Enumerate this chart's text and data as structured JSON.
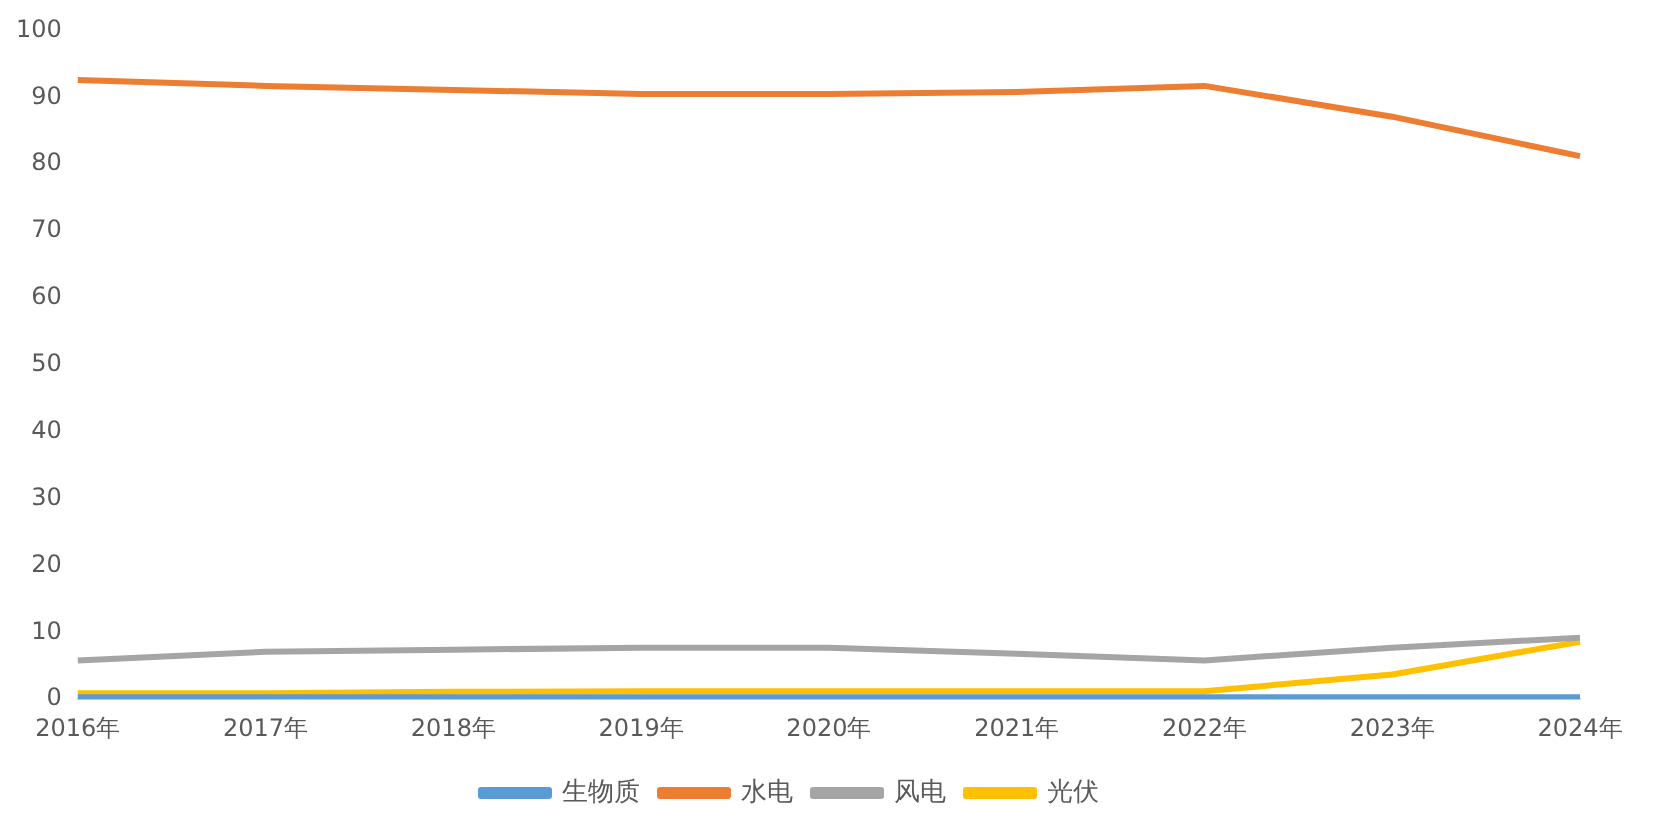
{
  "chart_data": {
    "type": "line",
    "categories": [
      "2016年",
      "2017年",
      "2018年",
      "2019年",
      "2020年",
      "2021年",
      "2022年",
      "2023年",
      "2024年"
    ],
    "series": [
      {
        "name": "生物质",
        "color": "#5b9bd5",
        "values": [
          0.3,
          0.3,
          0.3,
          0.3,
          0.3,
          0.3,
          0.3,
          0.3,
          0.3
        ]
      },
      {
        "name": "水电",
        "color": "#ed7d31",
        "values": [
          92.6,
          91.7,
          91.1,
          90.5,
          90.5,
          90.8,
          91.7,
          87.1,
          81.2
        ]
      },
      {
        "name": "风电",
        "color": "#a5a5a5",
        "values": [
          5.8,
          7.1,
          7.4,
          7.7,
          7.7,
          6.8,
          5.8,
          7.7,
          9.2
        ]
      },
      {
        "name": "光伏",
        "color": "#ffc000",
        "values": [
          0.9,
          0.9,
          1.1,
          1.2,
          1.2,
          1.2,
          1.2,
          3.7,
          8.6
        ]
      }
    ],
    "ylim": [
      0,
      100
    ],
    "yticks": [
      0,
      10,
      20,
      30,
      40,
      50,
      60,
      70,
      80,
      90,
      100
    ],
    "grid": false,
    "legend": "bottom",
    "marker": "none",
    "line_style": "solid"
  }
}
